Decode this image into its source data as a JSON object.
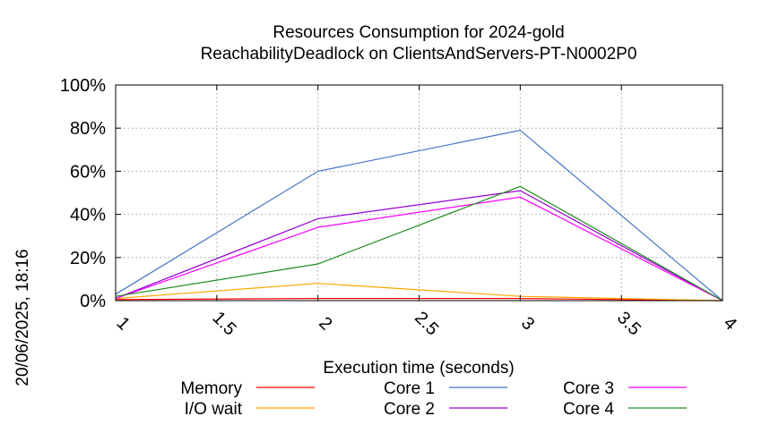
{
  "chart_data": {
    "type": "line",
    "title": "Resources Consumption for 2024-gold",
    "subtitle": "ReachabilityDeadlock on ClientsAndServers-PT-N0002P0",
    "xlabel": "Execution time (seconds)",
    "ylabel": "",
    "side_label": "20/06/2025, 18:16",
    "xlim": [
      1,
      4
    ],
    "ylim": [
      0,
      100
    ],
    "x_ticks": [
      "1",
      "1.5",
      "2",
      "2.5",
      "3",
      "3.5",
      "4"
    ],
    "y_ticks": [
      "0%",
      "20%",
      "40%",
      "60%",
      "80%",
      "100%"
    ],
    "grid": true,
    "legend_position": "bottom",
    "series": [
      {
        "name": "Memory",
        "color": "#ff0000",
        "x": [
          1,
          2,
          3,
          4
        ],
        "values": [
          0.5,
          1,
          1,
          0
        ]
      },
      {
        "name": "I/O wait",
        "color": "#ffa500",
        "x": [
          1,
          2,
          3,
          4
        ],
        "values": [
          1,
          8,
          2,
          0
        ]
      },
      {
        "name": "Core 1",
        "color": "#4472c4",
        "x": [
          1,
          2,
          3,
          4
        ],
        "values": [
          3,
          60,
          79,
          0
        ]
      },
      {
        "name": "Core 2",
        "color": "#9400d3",
        "x": [
          1,
          2,
          3,
          4
        ],
        "values": [
          1,
          38,
          51,
          0
        ]
      },
      {
        "name": "Core 3",
        "color": "#ff00ff",
        "x": [
          1,
          2,
          3,
          4
        ],
        "values": [
          1,
          34,
          48,
          0
        ]
      },
      {
        "name": "Core 4",
        "color": "#228b22",
        "x": [
          1,
          2,
          3,
          4
        ],
        "values": [
          2,
          17,
          53,
          0
        ]
      }
    ]
  }
}
